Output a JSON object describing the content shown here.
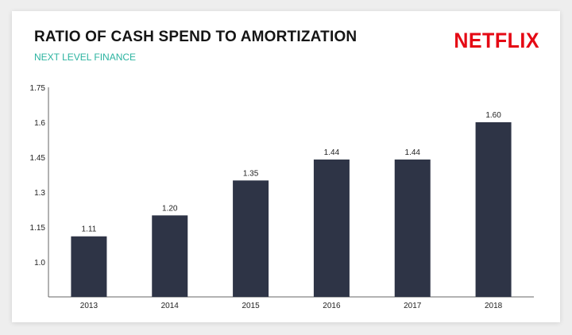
{
  "header": {
    "title": "RATIO OF CASH SPEND TO AMORTIZATION",
    "subtitle": "NEXT LEVEL FINANCE",
    "logo_text": "NETFLIX"
  },
  "colors": {
    "bar": "#2e3446",
    "subtitle": "#2bb3a0",
    "logo": "#e50914"
  },
  "chart_data": {
    "type": "bar",
    "title": "RATIO OF CASH SPEND TO AMORTIZATION",
    "xlabel": "",
    "ylabel": "",
    "categories": [
      "2013",
      "2014",
      "2015",
      "2016",
      "2017",
      "2018"
    ],
    "values": [
      1.11,
      1.2,
      1.35,
      1.44,
      1.44,
      1.6
    ],
    "value_labels": [
      "1.11",
      "1.20",
      "1.35",
      "1.44",
      "1.44",
      "1.60"
    ],
    "yticks": [
      1.0,
      1.15,
      1.3,
      1.45,
      1.6,
      1.75
    ],
    "ytick_labels": [
      "1.0",
      "1.15",
      "1.3",
      "1.45",
      "1.6",
      "1.75"
    ],
    "ylim": [
      0.85,
      1.75
    ],
    "grid": false,
    "legend": "none"
  }
}
